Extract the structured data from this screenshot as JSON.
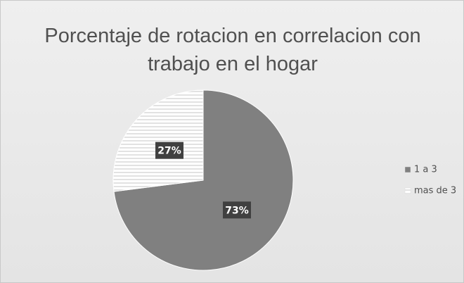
{
  "chart_data": {
    "type": "pie",
    "title": "Porcentaje de rotacion en correlacion con trabajo en el hogar",
    "categories": [
      "1 a 3",
      "mas de 3"
    ],
    "values": [
      73,
      27
    ],
    "value_labels": [
      "73%",
      "27%"
    ],
    "colors": [
      "#808080",
      "#ffffff"
    ],
    "legend": "right"
  }
}
